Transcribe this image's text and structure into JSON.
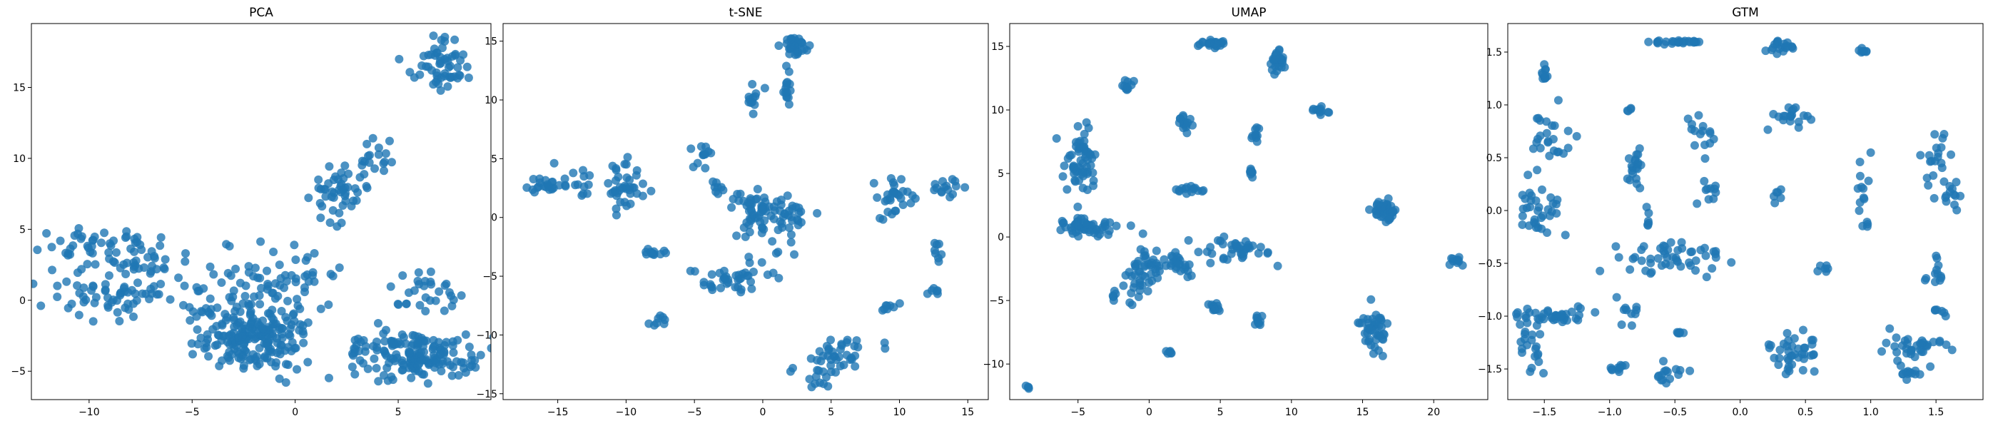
{
  "figure": {
    "point_color": "#1f77b4"
  },
  "chart_data": [
    {
      "type": "scatter",
      "title": "PCA",
      "xlabel": "",
      "ylabel": "",
      "xlim": [
        -12.8,
        9.5
      ],
      "ylim": [
        -7.0,
        19.5
      ],
      "xticks": [
        -10,
        -5,
        0,
        5
      ],
      "yticks": [
        -5,
        0,
        5,
        10,
        15
      ],
      "grid": false,
      "clusters": [
        {
          "cx": -9.5,
          "cy": 3.5,
          "sx": 1.6,
          "sy": 0.8,
          "n": 50
        },
        {
          "cx": -9.0,
          "cy": 0.6,
          "sx": 1.5,
          "sy": 0.9,
          "n": 60
        },
        {
          "cx": -7.2,
          "cy": 3.0,
          "sx": 0.9,
          "sy": 1.0,
          "n": 25
        },
        {
          "cx": -2.0,
          "cy": -2.6,
          "sx": 1.3,
          "sy": 1.2,
          "n": 200
        },
        {
          "cx": -2.0,
          "cy": 1.5,
          "sx": 1.3,
          "sy": 1.2,
          "n": 45
        },
        {
          "cx": -4.0,
          "cy": -1.0,
          "sx": 0.8,
          "sy": 1.0,
          "n": 20
        },
        {
          "cx": 0.5,
          "cy": 1.2,
          "sx": 0.7,
          "sy": 1.5,
          "n": 25
        },
        {
          "cx": 6.2,
          "cy": -4.0,
          "sx": 1.4,
          "sy": 0.8,
          "n": 140
        },
        {
          "cx": 4.0,
          "cy": -3.3,
          "sx": 0.8,
          "sy": 0.6,
          "n": 35
        },
        {
          "cx": 6.5,
          "cy": 0.6,
          "sx": 1.0,
          "sy": 0.8,
          "n": 30
        },
        {
          "cx": 2.0,
          "cy": 7.5,
          "sx": 0.7,
          "sy": 0.9,
          "n": 45
        },
        {
          "cx": 3.8,
          "cy": 10.0,
          "sx": 0.6,
          "sy": 0.9,
          "n": 20
        },
        {
          "cx": 7.2,
          "cy": 16.6,
          "sx": 0.5,
          "sy": 0.9,
          "n": 50
        },
        {
          "cx": 5.8,
          "cy": 16.4,
          "sx": 0.5,
          "sy": 0.3,
          "n": 6
        }
      ]
    },
    {
      "type": "scatter",
      "title": "t-SNE",
      "xlabel": "",
      "ylabel": "",
      "xlim": [
        -19.0,
        16.5
      ],
      "ylim": [
        -15.5,
        16.5
      ],
      "xticks": [
        -15,
        -10,
        -5,
        0,
        5,
        10,
        15
      ],
      "yticks": [
        -15,
        -10,
        -5,
        0,
        5,
        10,
        15
      ],
      "grid": false,
      "clusters": [
        {
          "cx": 2.5,
          "cy": 14.6,
          "sx": 0.5,
          "sy": 0.35,
          "n": 35
        },
        {
          "cx": 1.8,
          "cy": 11.2,
          "sx": 0.2,
          "sy": 0.8,
          "n": 15
        },
        {
          "cx": -0.8,
          "cy": 10.2,
          "sx": 0.3,
          "sy": 0.6,
          "n": 12
        },
        {
          "cx": -16.0,
          "cy": 2.7,
          "sx": 1.0,
          "sy": 0.3,
          "n": 20
        },
        {
          "cx": -13.0,
          "cy": 3.5,
          "sx": 0.8,
          "sy": 0.8,
          "n": 15
        },
        {
          "cx": -10.0,
          "cy": 2.8,
          "sx": 0.8,
          "sy": 1.0,
          "n": 40
        },
        {
          "cx": -4.0,
          "cy": 5.0,
          "sx": 0.6,
          "sy": 0.5,
          "n": 12
        },
        {
          "cx": -3.5,
          "cy": 2.5,
          "sx": 0.4,
          "sy": 0.4,
          "n": 8
        },
        {
          "cx": 0.0,
          "cy": 0.4,
          "sx": 1.2,
          "sy": 1.2,
          "n": 70
        },
        {
          "cx": -8.0,
          "cy": -3.0,
          "sx": 0.5,
          "sy": 0.2,
          "n": 12
        },
        {
          "cx": -2.5,
          "cy": -5.5,
          "sx": 1.2,
          "sy": 0.6,
          "n": 35
        },
        {
          "cx": 2.5,
          "cy": 0.2,
          "sx": 0.5,
          "sy": 1.2,
          "n": 15
        },
        {
          "cx": 9.5,
          "cy": 1.5,
          "sx": 0.6,
          "sy": 1.2,
          "n": 30
        },
        {
          "cx": 13.5,
          "cy": 2.6,
          "sx": 0.8,
          "sy": 0.4,
          "n": 15
        },
        {
          "cx": 12.8,
          "cy": -3.2,
          "sx": 0.2,
          "sy": 0.7,
          "n": 8
        },
        {
          "cx": 12.5,
          "cy": -6.2,
          "sx": 0.3,
          "sy": 0.2,
          "n": 6
        },
        {
          "cx": 9.3,
          "cy": -7.6,
          "sx": 0.3,
          "sy": 0.2,
          "n": 8
        },
        {
          "cx": -7.5,
          "cy": -8.8,
          "sx": 0.4,
          "sy": 0.3,
          "n": 8
        },
        {
          "cx": 5.5,
          "cy": -11.8,
          "sx": 1.2,
          "sy": 1.0,
          "n": 40
        },
        {
          "cx": 3.8,
          "cy": -13.8,
          "sx": 0.4,
          "sy": 0.4,
          "n": 8
        },
        {
          "cx": 2.2,
          "cy": -13.0,
          "sx": 0.1,
          "sy": 0.1,
          "n": 2
        },
        {
          "cx": 0.5,
          "cy": -3.5,
          "sx": 0.8,
          "sy": 0.8,
          "n": 10
        }
      ]
    },
    {
      "type": "scatter",
      "title": "UMAP",
      "xlabel": "",
      "ylabel": "",
      "xlim": [
        -9.8,
        23.8
      ],
      "ylim": [
        -12.8,
        16.8
      ],
      "xticks": [
        -5,
        0,
        5,
        10,
        15,
        20
      ],
      "yticks": [
        -10,
        -5,
        0,
        5,
        10,
        15
      ],
      "grid": false,
      "clusters": [
        {
          "cx": 4.5,
          "cy": 15.2,
          "sx": 0.5,
          "sy": 0.15,
          "n": 25
        },
        {
          "cx": 9.0,
          "cy": 13.8,
          "sx": 0.2,
          "sy": 0.5,
          "n": 30
        },
        {
          "cx": -1.5,
          "cy": 11.8,
          "sx": 0.2,
          "sy": 0.3,
          "n": 10
        },
        {
          "cx": 12.0,
          "cy": 10.0,
          "sx": 0.3,
          "sy": 0.2,
          "n": 12
        },
        {
          "cx": 2.5,
          "cy": 9.0,
          "sx": 0.2,
          "sy": 0.4,
          "n": 15
        },
        {
          "cx": 7.5,
          "cy": 8.0,
          "sx": 0.2,
          "sy": 0.3,
          "n": 10
        },
        {
          "cx": -4.8,
          "cy": 6.0,
          "sx": 0.5,
          "sy": 1.3,
          "n": 60
        },
        {
          "cx": 2.8,
          "cy": 3.7,
          "sx": 0.4,
          "sy": 0.2,
          "n": 15
        },
        {
          "cx": 7.2,
          "cy": 5.0,
          "sx": 0.1,
          "sy": 0.2,
          "n": 8
        },
        {
          "cx": -4.2,
          "cy": 0.8,
          "sx": 1.0,
          "sy": 0.4,
          "n": 50
        },
        {
          "cx": 16.5,
          "cy": 2.2,
          "sx": 0.4,
          "sy": 0.5,
          "n": 45
        },
        {
          "cx": 6.0,
          "cy": -1.0,
          "sx": 1.2,
          "sy": 0.5,
          "n": 40
        },
        {
          "cx": -0.5,
          "cy": -3.0,
          "sx": 0.7,
          "sy": 1.0,
          "n": 50
        },
        {
          "cx": 2.0,
          "cy": -2.0,
          "sx": 0.7,
          "sy": 0.5,
          "n": 25
        },
        {
          "cx": 4.5,
          "cy": -5.6,
          "sx": 0.3,
          "sy": 0.2,
          "n": 12
        },
        {
          "cx": 7.8,
          "cy": -6.5,
          "sx": 0.2,
          "sy": 0.2,
          "n": 10
        },
        {
          "cx": 15.8,
          "cy": -7.2,
          "sx": 0.5,
          "sy": 1.0,
          "n": 45
        },
        {
          "cx": 21.5,
          "cy": -1.8,
          "sx": 0.3,
          "sy": 0.3,
          "n": 10
        },
        {
          "cx": 1.5,
          "cy": -9.0,
          "sx": 0.15,
          "sy": 0.15,
          "n": 6
        },
        {
          "cx": -8.5,
          "cy": -11.8,
          "sx": 0.1,
          "sy": 0.1,
          "n": 4
        },
        {
          "cx": -2.5,
          "cy": -4.6,
          "sx": 0.2,
          "sy": 0.3,
          "n": 6
        }
      ]
    },
    {
      "type": "scatter",
      "title": "GTM",
      "xlabel": "",
      "ylabel": "",
      "xlim": [
        -1.78,
        1.86
      ],
      "ylim": [
        -1.79,
        1.77
      ],
      "xticks": [
        -1.5,
        -1.0,
        -0.5,
        0.0,
        0.5,
        1.0,
        1.5
      ],
      "yticks": [
        -1.5,
        -1.0,
        -0.5,
        0.0,
        0.5,
        1.0,
        1.5
      ],
      "grid": false,
      "clusters": [
        {
          "cx": -0.45,
          "cy": 1.6,
          "sx": 0.1,
          "sy": 0.01,
          "n": 25
        },
        {
          "cx": 0.32,
          "cy": 1.56,
          "sx": 0.06,
          "sy": 0.03,
          "n": 20
        },
        {
          "cx": 0.94,
          "cy": 1.51,
          "sx": 0.02,
          "sy": 0.01,
          "n": 8
        },
        {
          "cx": -1.5,
          "cy": 1.3,
          "sx": 0.01,
          "sy": 0.04,
          "n": 12
        },
        {
          "cx": -1.45,
          "cy": 0.7,
          "sx": 0.08,
          "sy": 0.15,
          "n": 25
        },
        {
          "cx": -1.55,
          "cy": 0.0,
          "sx": 0.1,
          "sy": 0.15,
          "n": 35
        },
        {
          "cx": -0.85,
          "cy": 0.95,
          "sx": 0.01,
          "sy": 0.01,
          "n": 4
        },
        {
          "cx": -0.8,
          "cy": 0.4,
          "sx": 0.03,
          "sy": 0.12,
          "n": 20
        },
        {
          "cx": -0.7,
          "cy": -0.1,
          "sx": 0.01,
          "sy": 0.06,
          "n": 6
        },
        {
          "cx": -0.3,
          "cy": 0.7,
          "sx": 0.05,
          "sy": 0.1,
          "n": 15
        },
        {
          "cx": -0.25,
          "cy": 0.2,
          "sx": 0.04,
          "sy": 0.06,
          "n": 10
        },
        {
          "cx": 0.4,
          "cy": 0.9,
          "sx": 0.08,
          "sy": 0.08,
          "n": 20
        },
        {
          "cx": 0.3,
          "cy": 0.15,
          "sx": 0.02,
          "sy": 0.04,
          "n": 6
        },
        {
          "cx": 0.95,
          "cy": 0.2,
          "sx": 0.03,
          "sy": 0.2,
          "n": 15
        },
        {
          "cx": 1.5,
          "cy": 0.5,
          "sx": 0.05,
          "sy": 0.15,
          "n": 20
        },
        {
          "cx": 1.62,
          "cy": 0.15,
          "sx": 0.03,
          "sy": 0.08,
          "n": 12
        },
        {
          "cx": -0.55,
          "cy": -0.45,
          "sx": 0.2,
          "sy": 0.08,
          "n": 50
        },
        {
          "cx": -1.4,
          "cy": -1.0,
          "sx": 0.15,
          "sy": 0.04,
          "n": 40
        },
        {
          "cx": -1.6,
          "cy": -1.3,
          "sx": 0.06,
          "sy": 0.15,
          "n": 20
        },
        {
          "cx": -0.85,
          "cy": -0.95,
          "sx": 0.08,
          "sy": 0.08,
          "n": 10
        },
        {
          "cx": -0.95,
          "cy": -1.5,
          "sx": 0.03,
          "sy": 0.03,
          "n": 10
        },
        {
          "cx": -0.55,
          "cy": -1.55,
          "sx": 0.06,
          "sy": 0.05,
          "n": 15
        },
        {
          "cx": -0.45,
          "cy": -1.15,
          "sx": 0.02,
          "sy": 0.01,
          "n": 6
        },
        {
          "cx": 0.4,
          "cy": -1.35,
          "sx": 0.1,
          "sy": 0.08,
          "n": 40
        },
        {
          "cx": 0.65,
          "cy": -0.55,
          "sx": 0.03,
          "sy": 0.03,
          "n": 6
        },
        {
          "cx": 1.35,
          "cy": -1.3,
          "sx": 0.12,
          "sy": 0.07,
          "n": 35
        },
        {
          "cx": 1.35,
          "cy": -1.55,
          "sx": 0.06,
          "sy": 0.03,
          "n": 12
        },
        {
          "cx": 1.5,
          "cy": -0.6,
          "sx": 0.03,
          "sy": 0.1,
          "n": 12
        },
        {
          "cx": 1.52,
          "cy": -0.95,
          "sx": 0.03,
          "sy": 0.03,
          "n": 6
        }
      ]
    }
  ]
}
